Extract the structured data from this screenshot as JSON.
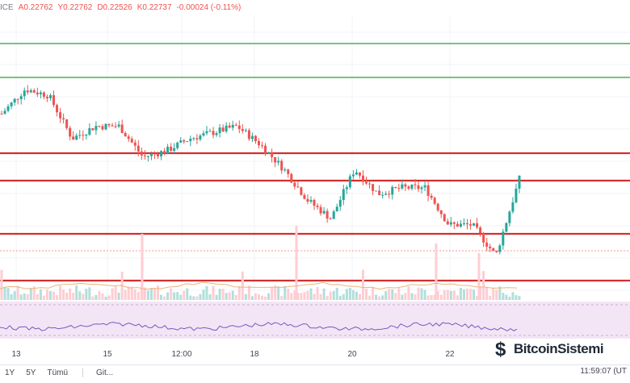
{
  "header": {
    "symbol_fragment": "ICE",
    "open": "A0.22762",
    "high": "Y0.22762",
    "low": "D0.22526",
    "close": "K0.22737",
    "change": "-0.00024 (-0.11%)"
  },
  "timeframes": [
    "1Y",
    "5Y",
    "Tümü"
  ],
  "goto_label": "Git...",
  "clock": "11:59:07 (UT",
  "watermark": "BitcoinSistemi",
  "colors": {
    "up": "#26a69a",
    "down": "#ef5350",
    "resistance_green": "#4caf50",
    "support_red": "#d32f2f",
    "volume_up": "#b2dfdb",
    "volume_down": "#ffcdd2",
    "rsi_line": "#7e57c2",
    "rsi_band": "#f3e5f5"
  },
  "chart_data": {
    "type": "line",
    "x": [
      "13",
      "13",
      "14",
      "14",
      "15",
      "15",
      "16",
      "16",
      "17",
      "17",
      "17",
      "18",
      "18",
      "19",
      "19",
      "20",
      "20",
      "21",
      "21",
      "22",
      "22",
      "22",
      "23"
    ],
    "close": [
      0.238,
      0.242,
      0.241,
      0.234,
      0.236,
      0.236,
      0.231,
      0.232,
      0.234,
      0.235,
      0.236,
      0.233,
      0.229,
      0.224,
      0.221,
      0.229,
      0.225,
      0.226,
      0.226,
      0.22,
      0.22,
      0.215,
      0.2274
    ],
    "xticks": [
      "13",
      "15",
      "12:00",
      "18",
      "20",
      "22"
    ],
    "horizontal_levels": [
      {
        "kind": "resistance",
        "color": "green"
      },
      {
        "kind": "resistance",
        "color": "green"
      },
      {
        "kind": "support",
        "color": "red"
      },
      {
        "kind": "support",
        "color": "red"
      },
      {
        "kind": "support",
        "color": "red"
      },
      {
        "kind": "support",
        "color": "red"
      }
    ],
    "panels": [
      "price",
      "volume",
      "rsi"
    ],
    "grid": true
  }
}
